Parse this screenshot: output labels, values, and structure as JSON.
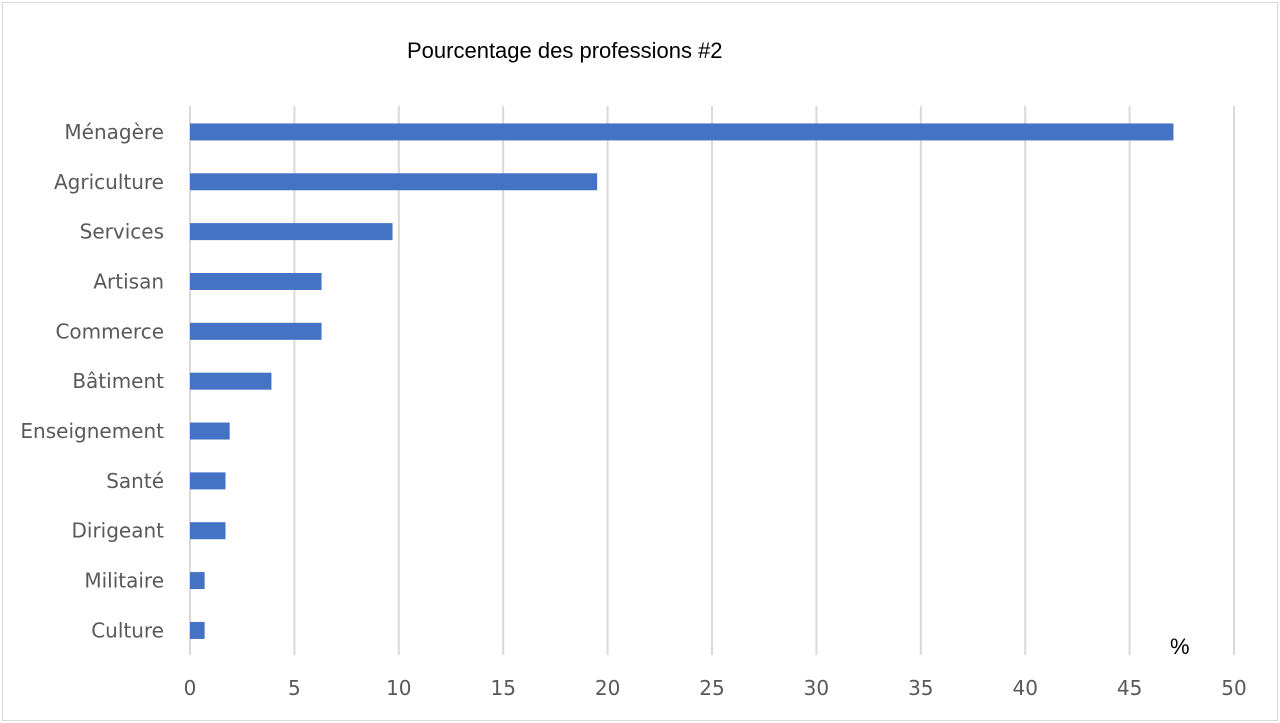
{
  "chart_data": {
    "type": "bar",
    "orientation": "horizontal",
    "title": "Pourcentage des professions #2",
    "xlabel": "%",
    "ylabel": "",
    "categories": [
      "Ménagère",
      "Agriculture",
      "Services",
      "Artisan",
      "Commerce",
      "Bâtiment",
      "Enseignement",
      "Santé",
      "Dirigeant",
      "Militaire",
      "Culture"
    ],
    "values": [
      47.1,
      19.5,
      9.7,
      6.3,
      6.3,
      3.9,
      1.9,
      1.7,
      1.7,
      0.7,
      0.7
    ],
    "xlim": [
      0,
      50
    ],
    "xticks": [
      0,
      5,
      10,
      15,
      20,
      25,
      30,
      35,
      40,
      45,
      50
    ],
    "grid": "vertical",
    "legend": "none",
    "bar_color": "#4472c4",
    "grid_color": "#d9d9d9"
  }
}
